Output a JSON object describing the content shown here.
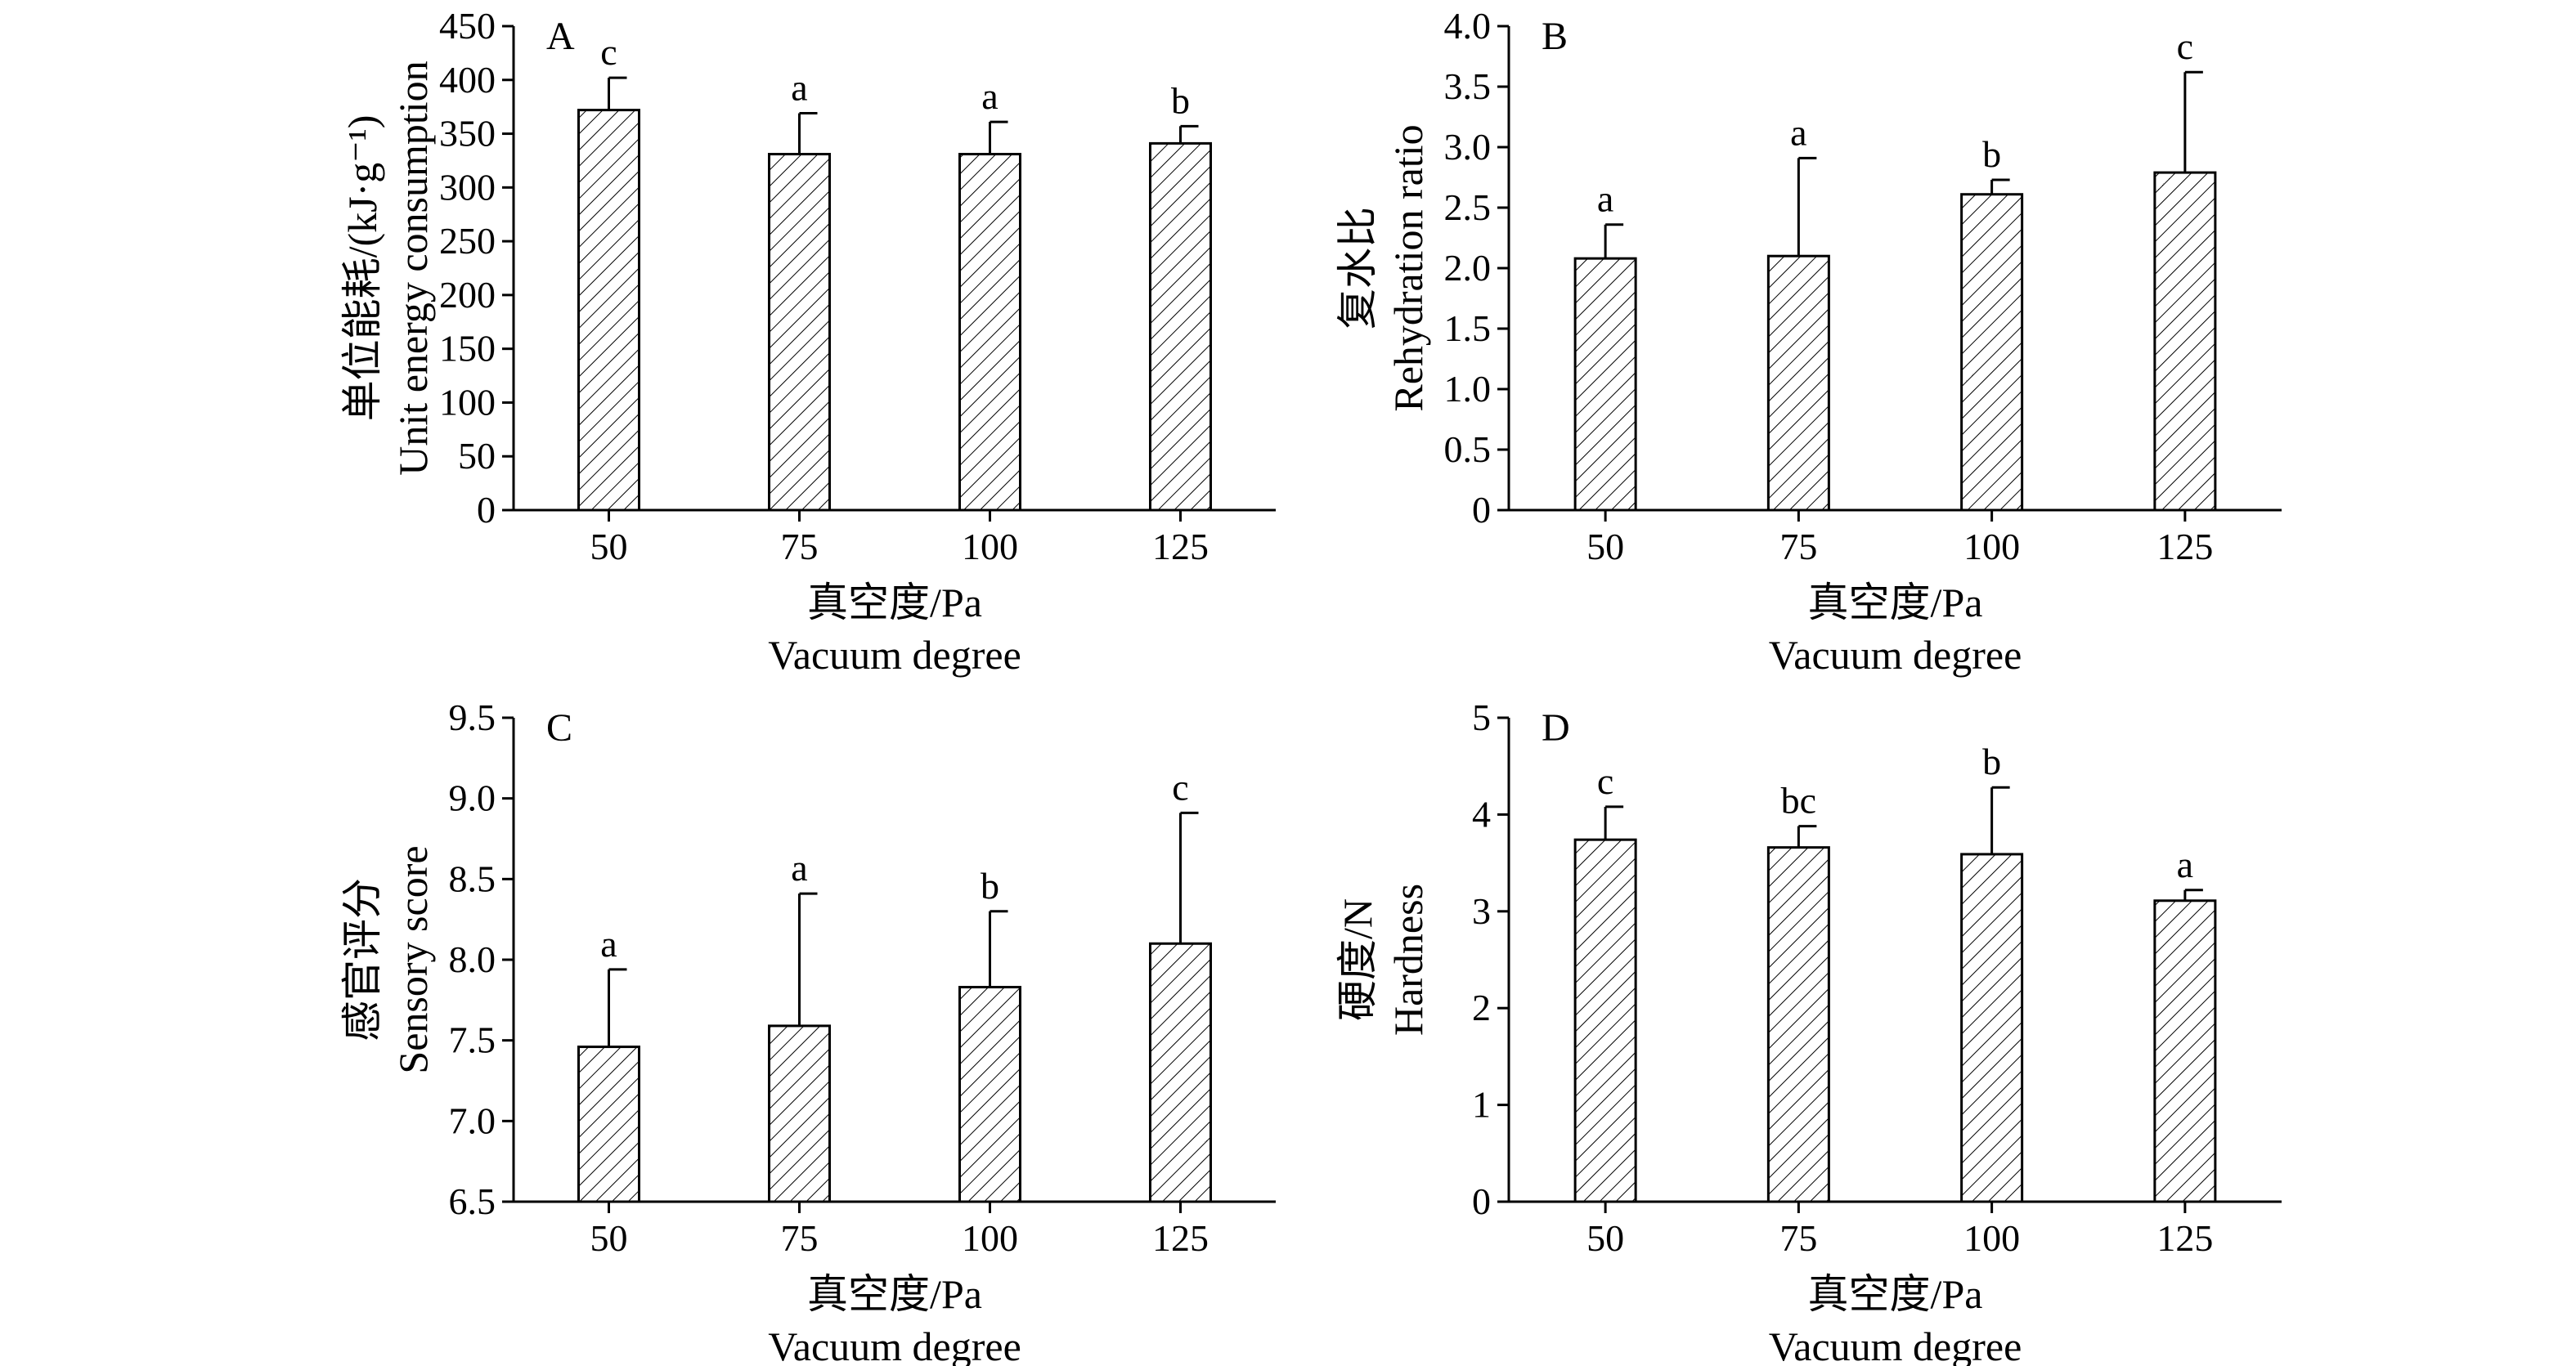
{
  "chart_data": [
    {
      "type": "bar",
      "panel_label": "A",
      "categories": [
        "50",
        "75",
        "100",
        "125"
      ],
      "values": [
        372,
        331,
        331,
        341
      ],
      "errors": [
        30,
        38,
        30,
        16
      ],
      "significance": [
        "c",
        "a",
        "a",
        "b"
      ],
      "ylim": [
        0,
        450
      ],
      "yticks": [
        "0",
        "50",
        "100",
        "150",
        "200",
        "250",
        "300",
        "350",
        "400",
        "450"
      ],
      "ylabel": [
        "单位能耗/(kJ·g⁻¹)",
        "Unit energy consumption"
      ],
      "xlabel": [
        "真空度/Pa",
        "Vacuum degree"
      ],
      "grid": false,
      "hatch": true
    },
    {
      "type": "bar",
      "panel_label": "B",
      "categories": [
        "50",
        "75",
        "100",
        "125"
      ],
      "values": [
        2.08,
        2.1,
        2.61,
        2.79
      ],
      "errors": [
        0.28,
        0.81,
        0.12,
        0.83
      ],
      "significance": [
        "a",
        "a",
        "b",
        "c"
      ],
      "ylim": [
        0,
        4.0
      ],
      "yticks": [
        "0",
        "0.5",
        "1.0",
        "1.5",
        "2.0",
        "2.5",
        "3.0",
        "3.5",
        "4.0"
      ],
      "ylabel": [
        "复水比",
        "Rehydration ratio"
      ],
      "xlabel": [
        "真空度/Pa",
        "Vacuum degree"
      ],
      "grid": false,
      "hatch": true
    },
    {
      "type": "bar",
      "panel_label": "C",
      "categories": [
        "50",
        "75",
        "100",
        "125"
      ],
      "values": [
        7.46,
        7.59,
        7.83,
        8.1
      ],
      "errors": [
        0.48,
        0.82,
        0.47,
        0.81
      ],
      "significance": [
        "a",
        "a",
        "b",
        "c"
      ],
      "ylim": [
        6.5,
        9.5
      ],
      "yticks": [
        "6.5",
        "7.0",
        "7.5",
        "8.0",
        "8.5",
        "9.0",
        "9.5"
      ],
      "ylabel": [
        "感官评分",
        "Sensory score"
      ],
      "xlabel": [
        "真空度/Pa",
        "Vacuum degree"
      ],
      "grid": false,
      "hatch": true
    },
    {
      "type": "bar",
      "panel_label": "D",
      "categories": [
        "50",
        "75",
        "100",
        "125"
      ],
      "values": [
        3.74,
        3.66,
        3.59,
        3.11
      ],
      "errors": [
        0.34,
        0.22,
        0.69,
        0.11
      ],
      "significance": [
        "c",
        "bc",
        "b",
        "a"
      ],
      "ylim": [
        0,
        5
      ],
      "yticks": [
        "0",
        "1",
        "2",
        "3",
        "4",
        "5"
      ],
      "ylabel": [
        "硬度/N",
        "Hardness"
      ],
      "xlabel": [
        "真空度/Pa",
        "Vacuum degree"
      ],
      "grid": false,
      "hatch": true
    }
  ]
}
